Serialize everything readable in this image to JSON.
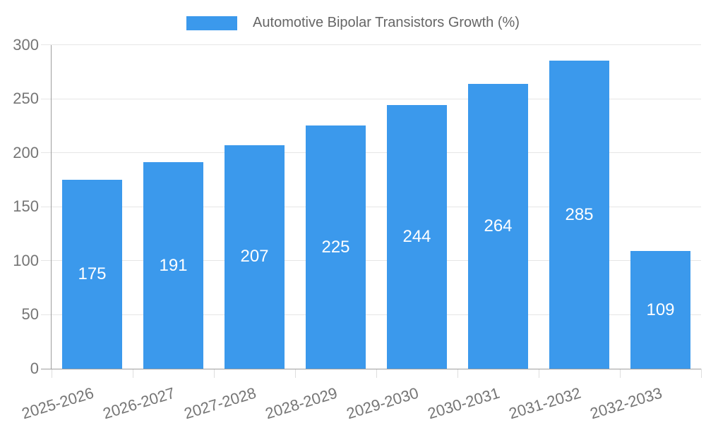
{
  "legend": {
    "label": "Automotive Bipolar Transistors Growth (%)"
  },
  "chart_data": {
    "type": "bar",
    "title": "",
    "xlabel": "",
    "ylabel": "",
    "categories": [
      "2025-2026",
      "2026-2027",
      "2027-2028",
      "2028-2029",
      "2029-2030",
      "2030-2031",
      "2031-2032",
      "2032-2033"
    ],
    "series": [
      {
        "name": "Automotive Bipolar Transistors Growth (%)",
        "values": [
          175,
          191,
          207,
          225,
          244,
          264,
          285,
          109
        ]
      }
    ],
    "ylim": [
      0,
      300
    ],
    "yticks": [
      0,
      50,
      100,
      150,
      200,
      250,
      300
    ],
    "grid": true,
    "legend_position": "top-center",
    "value_labels": "inside-center",
    "colors": {
      "bar": "#3b99ec",
      "grid": "#e6e6e6",
      "axis": "#9e9e9e",
      "tick": "#dedede",
      "tick_text": "#757575",
      "legend_text": "#666666",
      "value_text": "#ffffff",
      "background": "#ffffff"
    }
  }
}
